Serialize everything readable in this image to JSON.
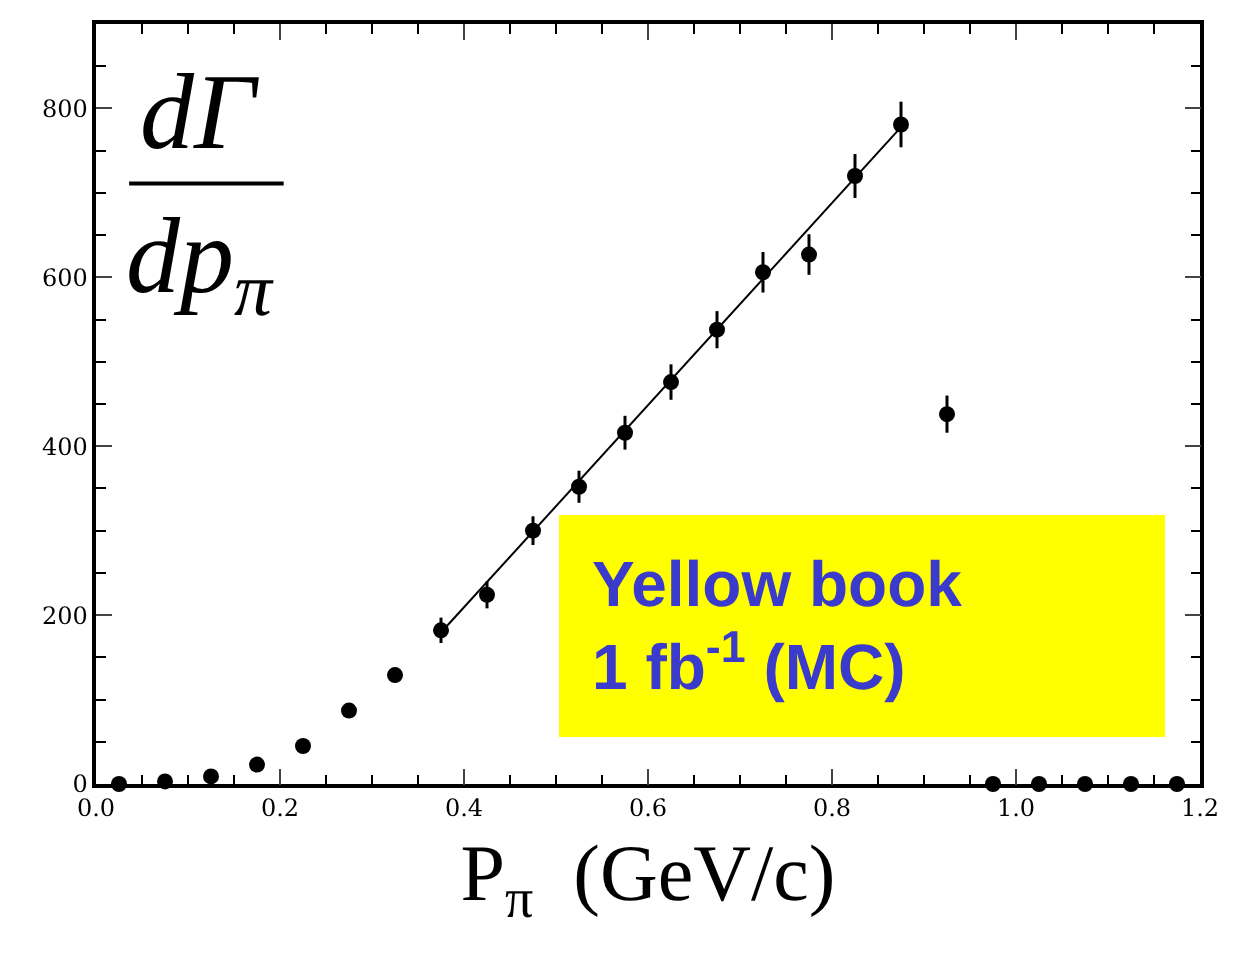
{
  "chart_data": {
    "type": "scatter",
    "annotations": [
      "dΓ",
      "dp$_{π}$",
      "Yellow book\n1 fb$^{-1}$ (MC)"
    ],
    "xlabel": "P$_{π}$  (GeV/c)",
    "series": [
      {
        "color": "#000000",
        "marker": "circle",
        "x": [
          0.025,
          0.075,
          0.125,
          0.175,
          0.225,
          0.275,
          0.325,
          0.375,
          0.425,
          0.475,
          0.525,
          0.575,
          0.625,
          0.675,
          0.725,
          0.775,
          0.825,
          0.875,
          0.925,
          0.975,
          1.025,
          1.075,
          1.125,
          1.175
        ],
        "values": [
          0,
          3,
          9,
          23,
          45,
          87,
          129,
          182,
          224,
          300,
          352,
          416,
          476,
          538,
          606,
          627,
          720,
          781,
          438,
          0,
          0,
          0,
          0,
          0
        ],
        "errors": [
          null,
          null,
          null,
          null,
          null,
          null,
          null,
          15,
          16,
          17,
          19,
          20,
          21,
          22,
          24,
          24,
          26,
          27,
          22,
          null,
          null,
          null,
          null,
          null
        ]
      },
      {
        "type": "line",
        "color": "#000000",
        "marker": "none",
        "line_style": "solid",
        "x": [
          0.373,
          0.876
        ],
        "values": [
          177,
          779
        ]
      }
    ],
    "xlim": [
      0,
      1.2
    ],
    "ylim": [
      0,
      900
    ],
    "xticks": [
      {
        "value": 0,
        "label": "0.0"
      },
      {
        "value": 0.2,
        "label": "0.2"
      },
      {
        "value": 0.4,
        "label": "0.4"
      },
      {
        "value": 0.6,
        "label": "0.6"
      },
      {
        "value": 0.8,
        "label": "0.8"
      },
      {
        "value": 1.0,
        "label": "1.0"
      },
      {
        "value": 1.2,
        "label": "1.2"
      }
    ],
    "yticks": [
      0,
      200,
      400,
      600,
      800
    ]
  }
}
